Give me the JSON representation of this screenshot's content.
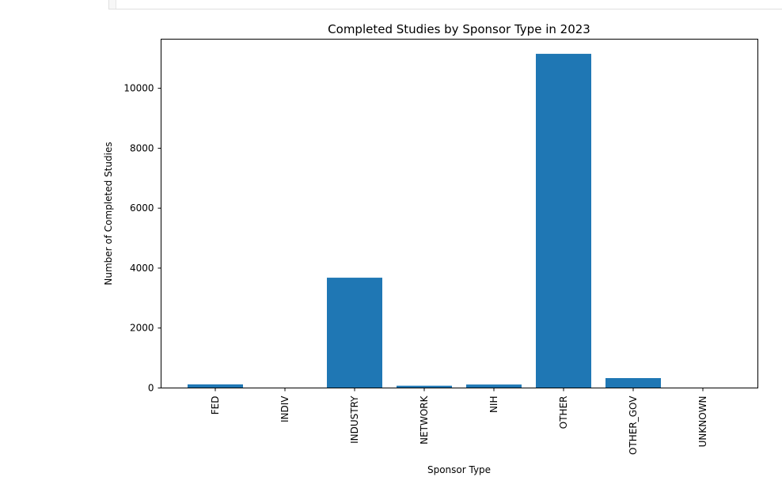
{
  "chart_data": {
    "type": "bar",
    "title": "Completed Studies by Sponsor Type in 2023",
    "xlabel": "Sponsor Type",
    "ylabel": "Number of Completed Studies",
    "categories": [
      "FED",
      "INDIV",
      "INDUSTRY",
      "NETWORK",
      "NIH",
      "OTHER",
      "OTHER_GOV",
      "UNKNOWN"
    ],
    "values": [
      120,
      5,
      3680,
      75,
      115,
      11150,
      330,
      3
    ],
    "ylim": [
      0,
      11700
    ],
    "yticks": [
      0,
      2000,
      4000,
      6000,
      8000,
      10000
    ],
    "ytick_labels": [
      "0",
      "2000",
      "4000",
      "6000",
      "8000",
      "10000"
    ],
    "bar_color": "#1f77b4",
    "grid": false,
    "legend": "none"
  }
}
